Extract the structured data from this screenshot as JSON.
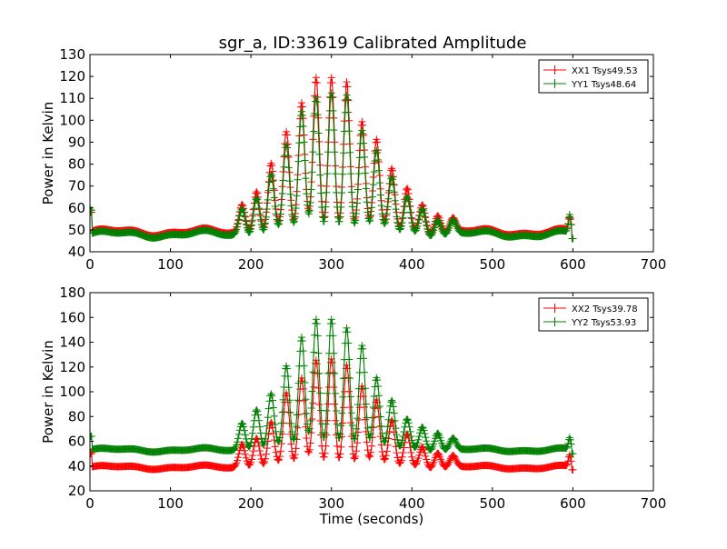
{
  "figure_title": "sgr_a, ID:33619 Calibrated Amplitude",
  "chart_data": [
    {
      "type": "line",
      "title": "sgr_a, ID:33619 Calibrated Amplitude",
      "xlabel": "",
      "ylabel": "Power in Kelvin",
      "xlim": [
        0,
        700
      ],
      "ylim": [
        40,
        130
      ],
      "xticks": [
        0,
        100,
        200,
        300,
        400,
        500,
        600,
        700
      ],
      "yticks": [
        40,
        50,
        60,
        70,
        80,
        90,
        100,
        110,
        120,
        130
      ],
      "marker": "+",
      "grid": false,
      "legend": "top-right",
      "time_range": [
        0,
        600
      ],
      "series": [
        {
          "name": "XX1 Tsys49.53",
          "color": "#ff0000",
          "baseline": 49,
          "start_value": 58,
          "end_value": 46,
          "peaks": [
            [
              189,
              62
            ],
            [
              207,
              69
            ],
            [
              225,
              80
            ],
            [
              244,
              94
            ],
            [
              263,
              107
            ],
            [
              281,
              119
            ],
            [
              300,
              121
            ],
            [
              319,
              118
            ],
            [
              338,
              100
            ],
            [
              356,
              90
            ],
            [
              375,
              77
            ],
            [
              394,
              69
            ],
            [
              413,
              62
            ],
            [
              432,
              58
            ],
            [
              451,
              55
            ],
            [
              596,
              55
            ]
          ]
        },
        {
          "name": "YY1 Tsys48.64",
          "color": "#008000",
          "baseline": 48,
          "start_value": 59,
          "end_value": 46,
          "peaks": [
            [
              189,
              60
            ],
            [
              207,
              66
            ],
            [
              225,
              75
            ],
            [
              244,
              88
            ],
            [
              263,
              103
            ],
            [
              281,
              110
            ],
            [
              300,
              114
            ],
            [
              319,
              112
            ],
            [
              338,
              96
            ],
            [
              356,
              85
            ],
            [
              375,
              73
            ],
            [
              394,
              65
            ],
            [
              413,
              60
            ],
            [
              432,
              56
            ],
            [
              451,
              54
            ],
            [
              596,
              56
            ]
          ]
        }
      ]
    },
    {
      "type": "line",
      "title": "",
      "xlabel": "Time (seconds)",
      "ylabel": "Power in Kelvin",
      "xlim": [
        0,
        700
      ],
      "ylim": [
        20,
        180
      ],
      "xticks": [
        0,
        100,
        200,
        300,
        400,
        500,
        600,
        700
      ],
      "yticks": [
        20,
        40,
        60,
        80,
        100,
        120,
        140,
        160,
        180
      ],
      "marker": "+",
      "grid": false,
      "legend": "top-right",
      "time_range": [
        0,
        600
      ],
      "series": [
        {
          "name": "XX2 Tsys39.78",
          "color": "#ff0000",
          "baseline": 39,
          "start_value": 50,
          "end_value": 37,
          "peaks": [
            [
              189,
              58
            ],
            [
              207,
              64
            ],
            [
              225,
              75
            ],
            [
              244,
              98
            ],
            [
              263,
              110
            ],
            [
              281,
              125
            ],
            [
              300,
              128
            ],
            [
              319,
              122
            ],
            [
              338,
              105
            ],
            [
              356,
              92
            ],
            [
              375,
              76
            ],
            [
              394,
              66
            ],
            [
              413,
              56
            ],
            [
              432,
              52
            ],
            [
              451,
              48
            ],
            [
              596,
              48
            ]
          ]
        },
        {
          "name": "YY2 Tsys53.93",
          "color": "#008000",
          "baseline": 53,
          "start_value": 64,
          "end_value": 50,
          "peaks": [
            [
              189,
              75
            ],
            [
              207,
              87
            ],
            [
              225,
              98
            ],
            [
              244,
              120
            ],
            [
              263,
              143
            ],
            [
              281,
              158
            ],
            [
              300,
              160
            ],
            [
              319,
              152
            ],
            [
              338,
              138
            ],
            [
              356,
              110
            ],
            [
              375,
              92
            ],
            [
              394,
              78
            ],
            [
              413,
              72
            ],
            [
              432,
              68
            ],
            [
              451,
              62
            ],
            [
              596,
              62
            ]
          ]
        }
      ]
    }
  ]
}
